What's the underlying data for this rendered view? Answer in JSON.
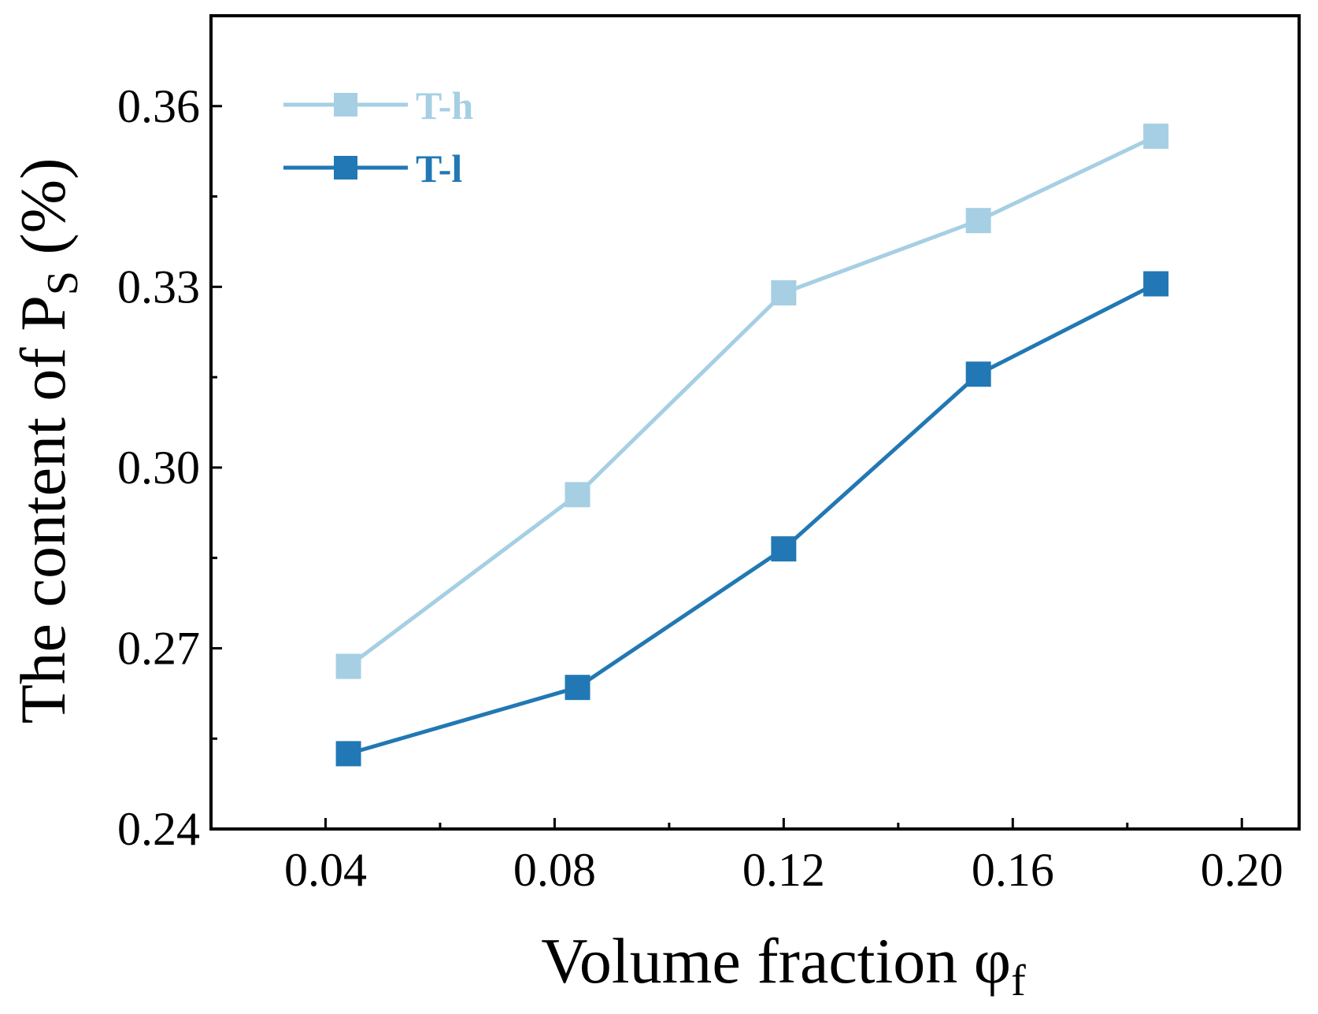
{
  "chart_data": {
    "type": "line",
    "title": "",
    "xlabel": {
      "main": "Volume fraction φ",
      "sub": "f"
    },
    "ylabel": {
      "main": "The content of P",
      "sub": "S",
      "suffix": " (%)"
    },
    "xlim": [
      0.02,
      0.21
    ],
    "ylim": [
      0.24,
      0.375
    ],
    "xticks": [
      "0.04",
      "0.08",
      "0.12",
      "0.16",
      "0.20"
    ],
    "xtick_values": [
      0.04,
      0.08,
      0.12,
      0.16,
      0.2
    ],
    "yticks": [
      "0.24",
      "0.27",
      "0.30",
      "0.33",
      "0.36"
    ],
    "ytick_values": [
      0.24,
      0.27,
      0.3,
      0.33,
      0.36
    ],
    "x": [
      0.044,
      0.084,
      0.12,
      0.154,
      0.185
    ],
    "series": [
      {
        "name": "T-h",
        "color": "#a6cfe4",
        "values": [
          0.267,
          0.2955,
          0.329,
          0.341,
          0.355
        ]
      },
      {
        "name": "T-l",
        "color": "#2178b4",
        "values": [
          0.2525,
          0.2635,
          0.2865,
          0.3155,
          0.3305
        ]
      }
    ],
    "legend_position": "top-left",
    "grid": false
  }
}
